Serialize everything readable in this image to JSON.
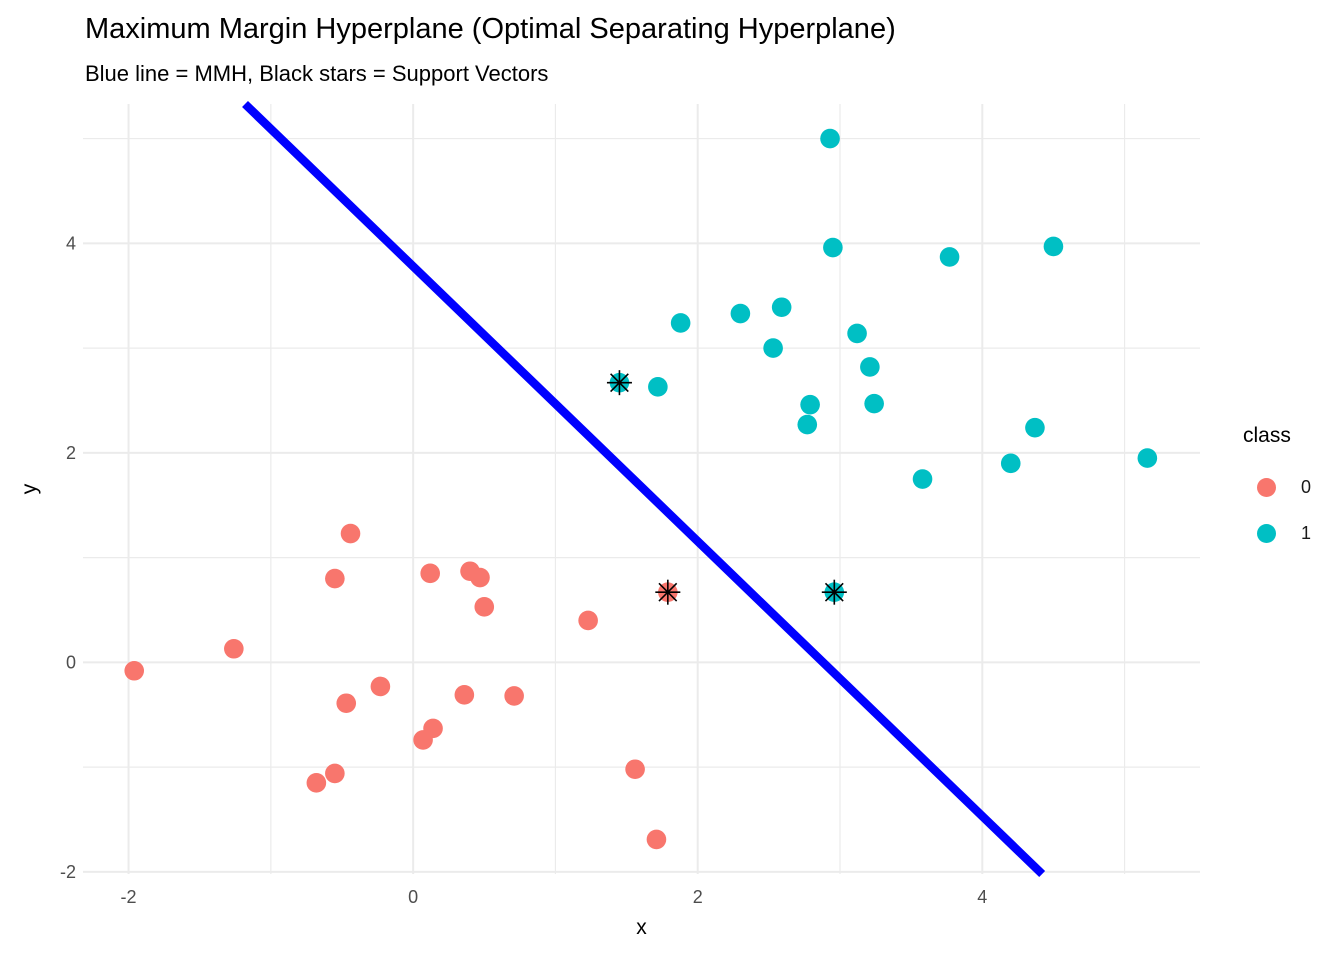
{
  "title": "Maximum Margin Hyperplane (Optimal Separating Hyperplane)",
  "subtitle": "Blue line = MMH, Black stars = Support Vectors",
  "axes": {
    "x": {
      "label": "x",
      "ticks": [
        -2,
        0,
        2,
        4
      ],
      "minor_ticks": [
        -1,
        1,
        3,
        5
      ],
      "range": [
        -2.32,
        5.53
      ]
    },
    "y": {
      "label": "y",
      "ticks": [
        -2,
        0,
        2,
        4
      ],
      "minor_ticks": [
        -1,
        1,
        3,
        5
      ],
      "range": [
        -2.02,
        5.33
      ]
    }
  },
  "legend": {
    "title": "class",
    "items": [
      {
        "label": "0",
        "color": "#F8766D"
      },
      {
        "label": "1",
        "color": "#00BFC4"
      }
    ]
  },
  "colors": {
    "class0": "#F8766D",
    "class1": "#00BFC4",
    "hyperplane": "#0000FF",
    "gridline": "#EBEBEB",
    "tick_text": "#4D4D4D",
    "star": "#000000"
  },
  "chart_data": {
    "type": "scatter",
    "title": "Maximum Margin Hyperplane (Optimal Separating Hyperplane)",
    "subtitle": "Blue line = MMH, Black stars = Support Vectors",
    "xlabel": "x",
    "ylabel": "y",
    "xlim": [
      -2.32,
      5.53
    ],
    "ylim": [
      -2.02,
      5.33
    ],
    "grid": true,
    "legend_position": "right",
    "series": [
      {
        "name": "0",
        "color": "#F8766D",
        "points": [
          [
            -1.96,
            -0.08
          ],
          [
            -1.26,
            0.13
          ],
          [
            -0.44,
            1.23
          ],
          [
            -0.55,
            0.8
          ],
          [
            0.12,
            0.85
          ],
          [
            0.4,
            0.87
          ],
          [
            0.47,
            0.81
          ],
          [
            0.5,
            0.53
          ],
          [
            1.23,
            0.4
          ],
          [
            -0.23,
            -0.23
          ],
          [
            -0.47,
            -0.39
          ],
          [
            0.36,
            -0.31
          ],
          [
            0.71,
            -0.32
          ],
          [
            0.14,
            -0.63
          ],
          [
            0.07,
            -0.74
          ],
          [
            -0.55,
            -1.06
          ],
          [
            -0.68,
            -1.15
          ],
          [
            1.56,
            -1.02
          ],
          [
            1.71,
            -1.69
          ],
          [
            1.79,
            0.67
          ]
        ]
      },
      {
        "name": "1",
        "color": "#00BFC4",
        "points": [
          [
            2.93,
            5.0
          ],
          [
            2.95,
            3.96
          ],
          [
            3.77,
            3.87
          ],
          [
            4.5,
            3.97
          ],
          [
            1.88,
            3.24
          ],
          [
            2.3,
            3.33
          ],
          [
            2.59,
            3.39
          ],
          [
            2.53,
            3.0
          ],
          [
            3.12,
            3.14
          ],
          [
            3.21,
            2.82
          ],
          [
            3.24,
            2.47
          ],
          [
            2.79,
            2.46
          ],
          [
            2.77,
            2.27
          ],
          [
            4.37,
            2.24
          ],
          [
            4.2,
            1.9
          ],
          [
            5.16,
            1.95
          ],
          [
            3.58,
            1.75
          ],
          [
            1.72,
            2.63
          ],
          [
            1.45,
            2.67
          ],
          [
            2.96,
            0.67
          ]
        ]
      }
    ],
    "support_vectors": [
      [
        1.45,
        2.67
      ],
      [
        1.79,
        0.67
      ],
      [
        2.96,
        0.67
      ]
    ],
    "hyperplane": {
      "slope": -1.312,
      "intercept": 3.78
    }
  }
}
